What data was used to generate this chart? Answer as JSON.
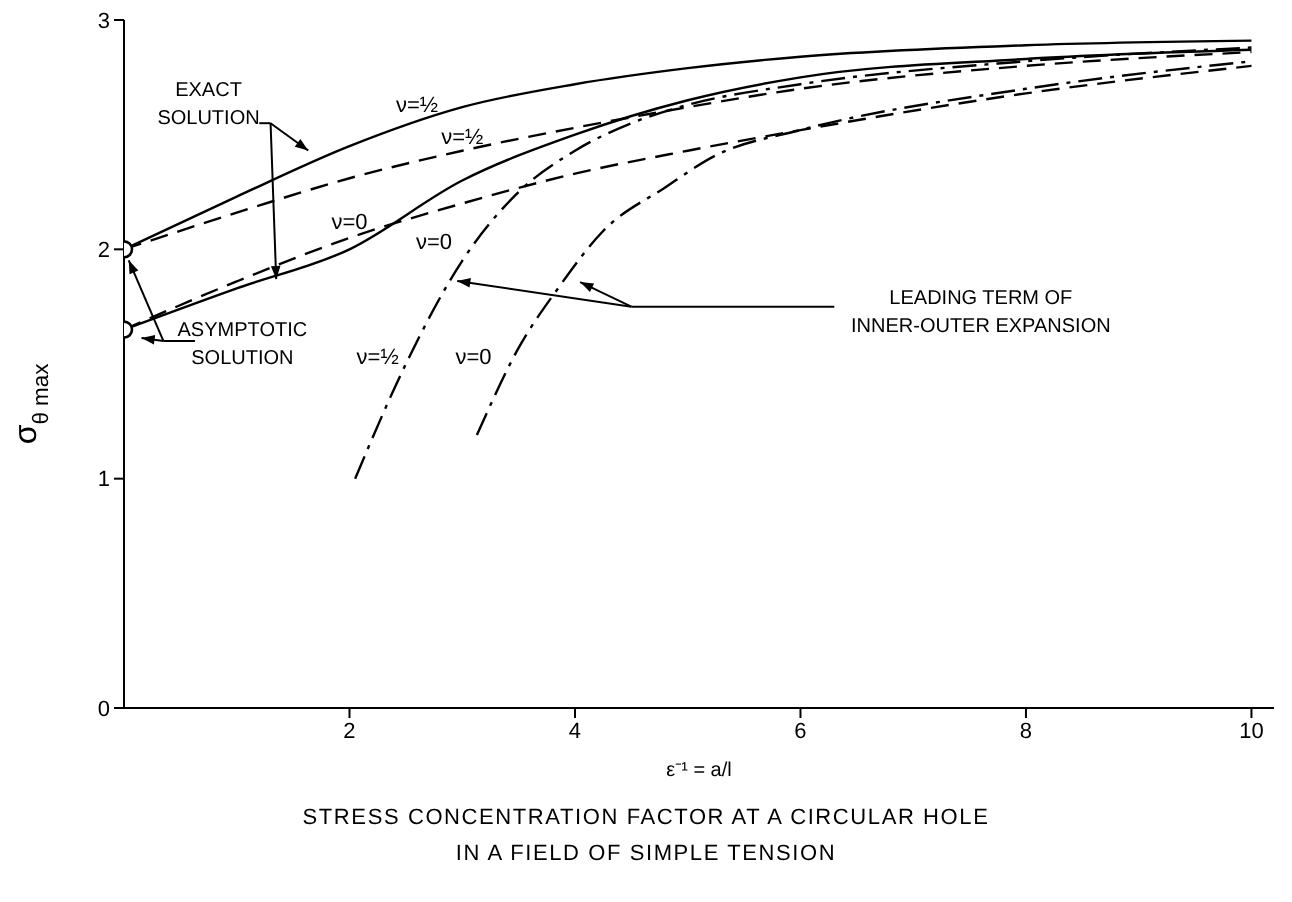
{
  "chart_data": {
    "type": "line",
    "title": "STRESS CONCENTRATION FACTOR AT A CIRCULAR HOLE IN A FIELD OF SIMPLE TENSION",
    "xlabel": "ε⁻¹ = a/l",
    "ylabel": "σ$_{θ max}$",
    "xlim": [
      0,
      10.2
    ],
    "xticks": [
      2,
      4,
      6,
      8,
      10
    ],
    "ylim": [
      0,
      3
    ],
    "yticks": [
      0,
      1,
      2,
      3
    ],
    "grid": false,
    "annotations": [
      {
        "text": "EXACT SOLUTION",
        "x": 1.35,
        "y": 1.87
      },
      {
        "text": "ASYMPTOTIC SOLUTION",
        "x": 0,
        "y": 2.0
      },
      "LEADING TERM OF INNER-OUTER EXPANSION"
    ],
    "series": [
      {
        "name": "ν=½",
        "color": "#000000",
        "line_style": "solid",
        "x": [
          0,
          1,
          2,
          3,
          4,
          5,
          6,
          8,
          10
        ],
        "values": [
          2.0,
          2.23,
          2.45,
          2.62,
          2.72,
          2.79,
          2.84,
          2.89,
          2.91
        ]
      },
      {
        "name": "ν=½",
        "color": "#000000",
        "line_style": "dashed",
        "x": [
          0,
          1,
          2,
          3,
          4,
          5,
          6,
          8,
          10
        ],
        "values": [
          2.0,
          2.16,
          2.31,
          2.43,
          2.53,
          2.62,
          2.7,
          2.8,
          2.86
        ]
      },
      {
        "name": "ν=0",
        "color": "#000000",
        "line_style": "solid",
        "x": [
          0,
          1,
          2,
          3,
          4,
          5,
          6,
          8,
          10
        ],
        "values": [
          1.65,
          1.83,
          2.0,
          2.3,
          2.5,
          2.65,
          2.75,
          2.83,
          2.87
        ]
      },
      {
        "name": "ν=0",
        "color": "#000000",
        "line_style": "dashed",
        "x": [
          0,
          1,
          2,
          3,
          4,
          5,
          6,
          8,
          10
        ],
        "values": [
          1.65,
          1.86,
          2.05,
          2.2,
          2.33,
          2.43,
          2.52,
          2.68,
          2.8
        ]
      },
      {
        "name": "ν=½",
        "color": "#000000",
        "line_style": "dashdot",
        "x": [
          2.05,
          2.5,
          3,
          3.5,
          4,
          4.5,
          5,
          6,
          8,
          10
        ],
        "values": [
          1.0,
          1.5,
          1.95,
          2.25,
          2.43,
          2.55,
          2.63,
          2.72,
          2.82,
          2.88
        ]
      },
      {
        "name": "ν=0",
        "color": "#000000",
        "line_style": "dashdot",
        "x": [
          3.13,
          3.5,
          3.85,
          4.25,
          4.8,
          5.25,
          6,
          8,
          10
        ],
        "values": [
          1.19,
          1.57,
          1.83,
          2.08,
          2.27,
          2.41,
          2.52,
          2.7,
          2.82
        ]
      },
      {
        "type": "scatter",
        "color": "#000000",
        "marker": "circle",
        "x": [
          0,
          0
        ],
        "values": [
          2.0,
          1.65
        ]
      }
    ]
  }
}
